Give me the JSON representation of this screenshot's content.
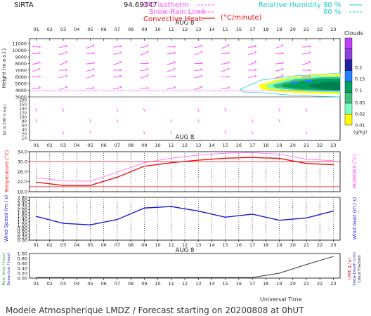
{
  "header": {
    "station": "SIRTA",
    "code": "94.69347",
    "legend_isotherm": "0°C isotherm",
    "legend_snow_rain": "Snow-Rain Limit",
    "legend_conv_heat": "Convective Heat.",
    "legend_conv_unit": "(°C/minute)",
    "legend_rh": "Relative Humidity",
    "rh_90": "90 %",
    "rh_60": "60 %"
  },
  "footer": {
    "universal_time": "Universal Time",
    "forecast_caption": "Modele Atmospherique LMDZ / Forecast starting on 20200808 at 0hUT"
  },
  "chart_data": [
    {
      "type": "heatmap",
      "panel": "clouds_wind_profile",
      "date_label": "AUG 8",
      "hours": [
        "01",
        "02",
        "03",
        "04",
        "05",
        "06",
        "07",
        "08",
        "09",
        "10",
        "11",
        "12",
        "13",
        "14",
        "15",
        "16",
        "17",
        "18",
        "19",
        "20",
        "21",
        "22",
        "23"
      ],
      "ylabel": "Height (m a.s.l.)",
      "ylabel_low": "Up to 200 m a.g.l.",
      "yticks_upper": [
        3000,
        4000,
        5000,
        6000,
        7000,
        8000,
        9000,
        10000,
        11000
      ],
      "yticks_lower": [
        10,
        20,
        40,
        60,
        80,
        100,
        120,
        140,
        150,
        200
      ],
      "freezing_level_m": 3950,
      "colorbar_title": "Clouds",
      "colorbar_unit": "(g/kg)",
      "colorbar_ticks": [
        "0.2",
        "0.15",
        "0.1",
        "0.05",
        "0.02",
        "0.01"
      ],
      "colorbar_colors": [
        "#c040ff",
        "#9040e0",
        "#2020a0",
        "#2080ff",
        "#00a060",
        "#40c080",
        "#80ffc0",
        "#ffff00"
      ]
    },
    {
      "type": "line",
      "panel": "temperature",
      "date_label": "AUG 8",
      "ylabel_left": "Temperature (°C)",
      "ylabel_right": "HUMIDEX (°C)",
      "yticks": [
        18.0,
        22.0,
        26.0,
        30.0,
        34.0
      ],
      "ylim": [
        18,
        34
      ],
      "reference_lines": [
        30,
        20
      ],
      "x": [
        1,
        3,
        5,
        7,
        9,
        11,
        13,
        15,
        17,
        19,
        21,
        23
      ],
      "series": [
        {
          "values": [
            21.8,
            20.5,
            20.5,
            23.8,
            28.2,
            29.6,
            30.6,
            31.4,
            31.7,
            31.3,
            29.3,
            28.8
          ],
          "color": "#ee1111"
        },
        {
          "values": [
            23.6,
            22.3,
            22.2,
            25.8,
            29.6,
            31.4,
            32.6,
            33.4,
            33.6,
            33.0,
            31.0,
            30.4
          ],
          "color": "#ff77ff"
        }
      ]
    },
    {
      "type": "line",
      "panel": "wind_speed",
      "date_label": "AUG 8",
      "ylabel_left": "Wind Speed (m / s)",
      "ylabel_right": "Wind Gust (m / s)",
      "yticks": [
        0.0,
        0.2,
        0.4,
        0.6,
        0.8,
        1.0,
        1.2,
        1.4,
        1.6,
        1.8,
        2.0,
        2.2,
        2.4,
        2.6,
        2.8
      ],
      "ylim": [
        0,
        2.8
      ],
      "x": [
        1,
        3,
        5,
        7,
        9,
        11,
        13,
        15,
        17,
        19,
        21,
        23
      ],
      "series": [
        {
          "values": [
            1.55,
            1.1,
            1.0,
            1.35,
            2.1,
            2.2,
            1.9,
            1.5,
            1.7,
            1.3,
            1.45,
            1.9
          ],
          "color": "#1a1acc"
        }
      ]
    },
    {
      "type": "line",
      "panel": "precipitation",
      "date_label": "AUG 8",
      "ylabel_left_rain": "Rain (mm / hour)",
      "ylabel_left_snow": "Snow (cm / hour)",
      "ylabel_right_cape": "CAPE (J / g)",
      "ylabel_right_snowdepth": "Snow Depth (cm)",
      "ylabel_right_cloud": "Cloud Fraction",
      "yticks": [
        0.0,
        0.2,
        0.4,
        0.6,
        0.8,
        1.0
      ],
      "ylim": [
        0,
        1
      ],
      "x": [
        1,
        3,
        5,
        7,
        9,
        11,
        13,
        15,
        17,
        19,
        21,
        23
      ],
      "series": [
        {
          "values": [
            0.02,
            0.02,
            0.02,
            0.02,
            0.02,
            0.02,
            0.02,
            0.02,
            0.02,
            0.2,
            0.55,
            0.88
          ],
          "color": "#333333"
        }
      ]
    }
  ]
}
